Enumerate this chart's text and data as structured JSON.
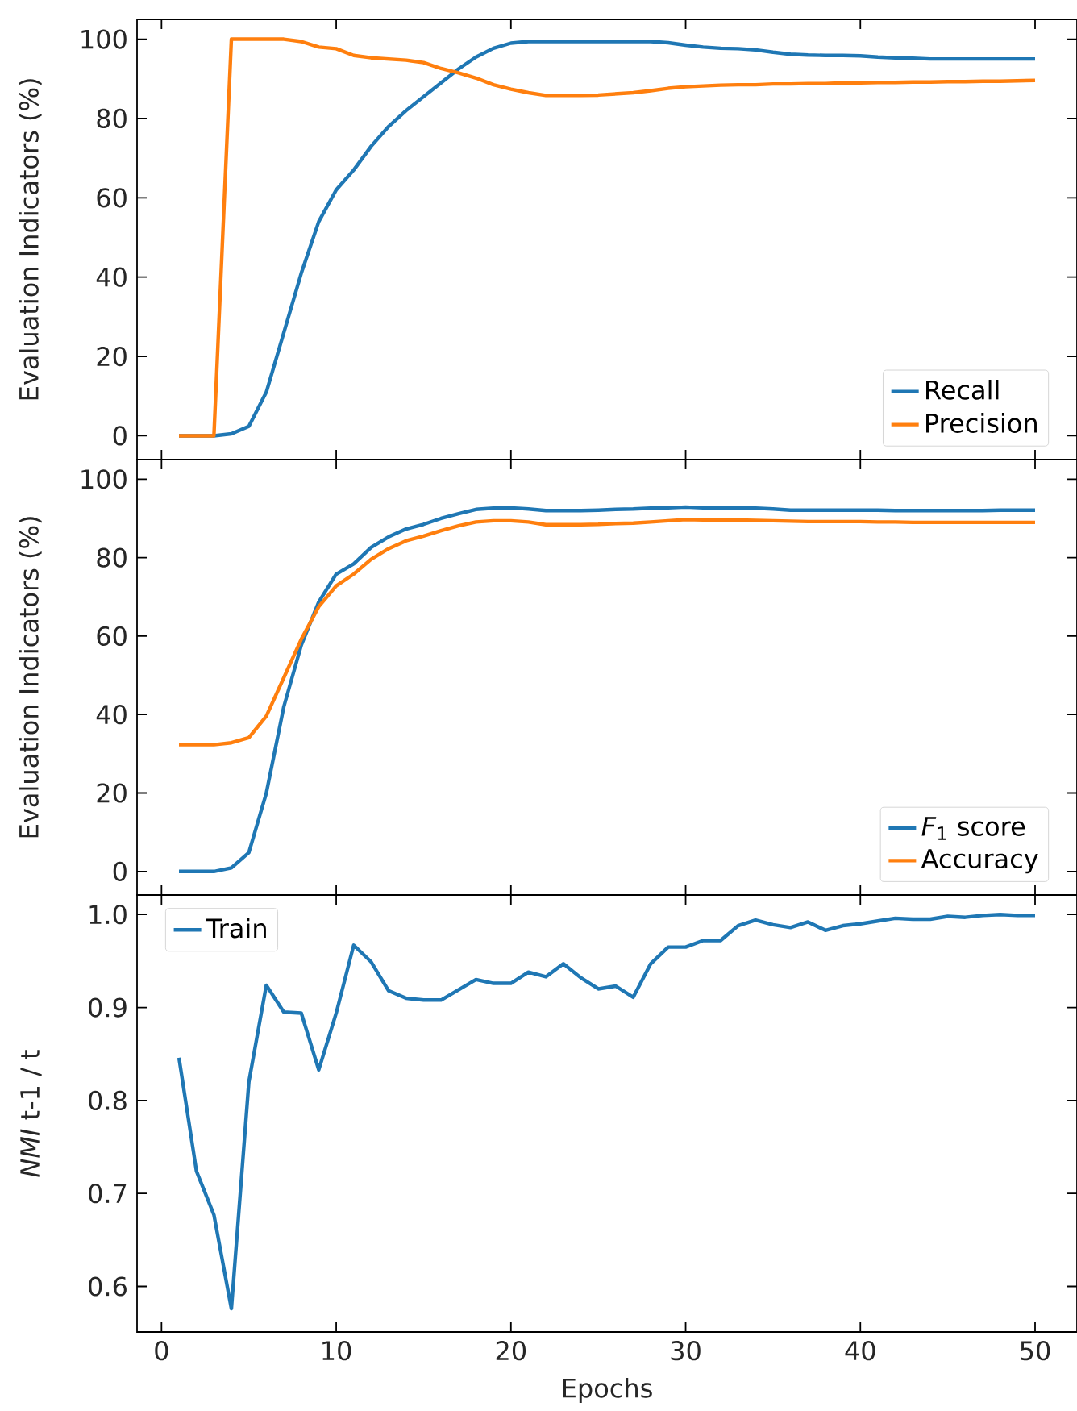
{
  "chart_data": [
    {
      "type": "line",
      "x": [
        1,
        2,
        3,
        4,
        5,
        6,
        7,
        8,
        9,
        10,
        11,
        12,
        13,
        14,
        15,
        16,
        17,
        18,
        19,
        20,
        21,
        22,
        23,
        24,
        25,
        26,
        27,
        28,
        29,
        30,
        31,
        32,
        33,
        34,
        35,
        36,
        37,
        38,
        39,
        40,
        41,
        42,
        43,
        44,
        45,
        46,
        47,
        48,
        49,
        50
      ],
      "ylabel": "Evaluation Indicators (%)",
      "xlim": [
        -1.4,
        52.4
      ],
      "xticks": [
        0,
        10,
        20,
        30,
        40,
        50
      ],
      "ylim": [
        -6,
        105
      ],
      "yticks": [
        0,
        20,
        40,
        60,
        80,
        100
      ],
      "tick_labels": "y",
      "legend": "bottom right",
      "grid": false,
      "line_style": "solid",
      "marker": "none",
      "series": [
        {
          "name": "Recall",
          "color": "#1f77b4",
          "values": [
            0,
            0,
            0,
            0.5,
            2.4,
            11,
            26,
            41,
            54,
            62,
            67,
            73,
            78,
            82,
            85.5,
            89,
            92.5,
            95.5,
            97.7,
            99,
            99.4,
            99.4,
            99.4,
            99.4,
            99.4,
            99.4,
            99.4,
            99.4,
            99.1,
            98.5,
            98,
            97.7,
            97.6,
            97.3,
            96.7,
            96.2,
            96,
            95.9,
            95.9,
            95.8,
            95.5,
            95.3,
            95.2,
            95,
            95,
            95,
            95,
            95,
            95,
            95
          ]
        },
        {
          "name": "Precision",
          "color": "#ff7f0e",
          "values": [
            0,
            0,
            0,
            100,
            100,
            100,
            100,
            99.4,
            98,
            97.6,
            95.9,
            95.3,
            95,
            94.7,
            94.1,
            92.6,
            91.5,
            90.2,
            88.5,
            87.4,
            86.5,
            85.8,
            85.8,
            85.8,
            85.9,
            86.2,
            86.5,
            87,
            87.6,
            88,
            88.2,
            88.4,
            88.5,
            88.5,
            88.7,
            88.7,
            88.8,
            88.8,
            89,
            89,
            89.1,
            89.1,
            89.2,
            89.2,
            89.3,
            89.3,
            89.4,
            89.4,
            89.5,
            89.6
          ]
        }
      ]
    },
    {
      "type": "line",
      "x": [
        1,
        2,
        3,
        4,
        5,
        6,
        7,
        8,
        9,
        10,
        11,
        12,
        13,
        14,
        15,
        16,
        17,
        18,
        19,
        20,
        21,
        22,
        23,
        24,
        25,
        26,
        27,
        28,
        29,
        30,
        31,
        32,
        33,
        34,
        35,
        36,
        37,
        38,
        39,
        40,
        41,
        42,
        43,
        44,
        45,
        46,
        47,
        48,
        49,
        50
      ],
      "ylabel": "Evaluation Indicators (%)",
      "xlim": [
        -1.4,
        52.4
      ],
      "xticks": [
        0,
        10,
        20,
        30,
        40,
        50
      ],
      "ylim": [
        -6,
        105
      ],
      "yticks": [
        0,
        20,
        40,
        60,
        80,
        100
      ],
      "tick_labels": "y",
      "legend": "bottom right",
      "grid": false,
      "line_style": "solid",
      "marker": "none",
      "series": [
        {
          "name": "*F*$_{1}$ score",
          "color": "#1f77b4",
          "values": [
            0,
            0,
            0,
            0.9,
            4.8,
            20,
            42,
            57.7,
            68.7,
            75.8,
            78.4,
            82.6,
            85.3,
            87.3,
            88.5,
            90,
            91.2,
            92.3,
            92.6,
            92.7,
            92.4,
            92,
            92,
            92,
            92.1,
            92.3,
            92.4,
            92.6,
            92.7,
            92.9,
            92.7,
            92.7,
            92.6,
            92.6,
            92.4,
            92.1,
            92.1,
            92.1,
            92.1,
            92.1,
            92.1,
            92,
            92,
            92,
            92,
            92,
            92,
            92.1,
            92.1,
            92.1
          ]
        },
        {
          "name": "Accuracy",
          "color": "#ff7f0e",
          "values": [
            32.3,
            32.3,
            32.3,
            32.8,
            34.1,
            39.6,
            49.4,
            59.2,
            67.5,
            72.8,
            75.8,
            79.6,
            82.3,
            84.3,
            85.5,
            86.9,
            88.1,
            89.1,
            89.4,
            89.4,
            89.1,
            88.4,
            88.4,
            88.4,
            88.5,
            88.7,
            88.8,
            89.1,
            89.4,
            89.7,
            89.6,
            89.6,
            89.6,
            89.5,
            89.4,
            89.3,
            89.2,
            89.2,
            89.2,
            89.2,
            89.1,
            89.1,
            89,
            89,
            89,
            89,
            89,
            89,
            89,
            89
          ]
        }
      ]
    },
    {
      "type": "line",
      "x": [
        1,
        2,
        3,
        4,
        5,
        6,
        7,
        8,
        9,
        10,
        11,
        12,
        13,
        14,
        15,
        16,
        17,
        18,
        19,
        20,
        21,
        22,
        23,
        24,
        25,
        26,
        27,
        28,
        29,
        30,
        31,
        32,
        33,
        34,
        35,
        36,
        37,
        38,
        39,
        40,
        41,
        42,
        43,
        44,
        45,
        46,
        47,
        48,
        49,
        50
      ],
      "xlabel": "Epochs",
      "ylabel": "*NMI* t-1 / t",
      "xlim": [
        -1.4,
        52.4
      ],
      "xticks": [
        0,
        10,
        20,
        30,
        40,
        50
      ],
      "ylim": [
        0.551,
        1.021
      ],
      "yticks": [
        0.6,
        0.7,
        0.8,
        0.9,
        {
          "value": 1.0,
          "label": "1.0"
        }
      ],
      "legend": "top left",
      "grid": false,
      "line_style": "solid",
      "marker": "none",
      "series": [
        {
          "name": "Train",
          "color": "#1f77b4",
          "values": [
            0.846,
            0.724,
            0.677,
            0.576,
            0.82,
            0.924,
            0.895,
            0.894,
            0.833,
            0.894,
            0.967,
            0.949,
            0.918,
            0.91,
            0.908,
            0.908,
            0.919,
            0.93,
            0.926,
            0.926,
            0.938,
            0.933,
            0.947,
            0.932,
            0.92,
            0.923,
            0.911,
            0.947,
            0.965,
            0.965,
            0.972,
            0.972,
            0.988,
            0.994,
            0.989,
            0.986,
            0.992,
            0.983,
            0.988,
            0.99,
            0.993,
            0.996,
            0.995,
            0.995,
            0.998,
            0.997,
            0.999,
            1.0,
            0.999,
            0.999
          ]
        }
      ]
    }
  ]
}
